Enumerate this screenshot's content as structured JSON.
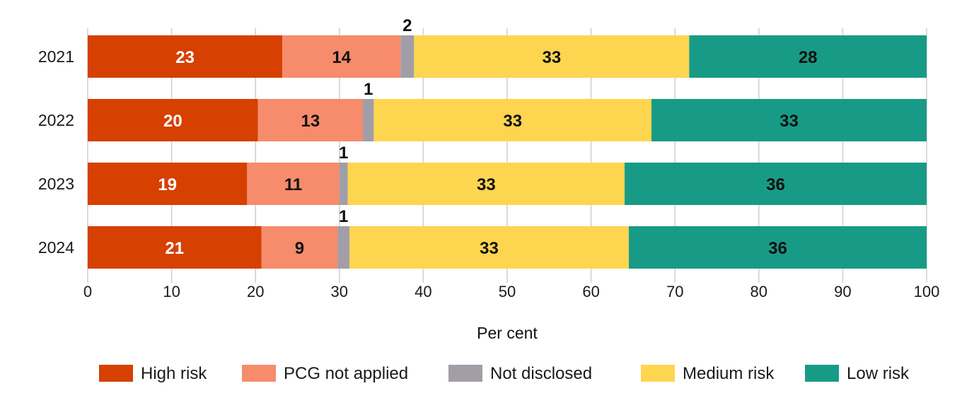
{
  "chart_data": {
    "type": "bar",
    "orientation": "horizontal",
    "stacked": true,
    "title": "",
    "xlabel": "Per cent",
    "ylabel": "",
    "xlim": [
      0,
      100
    ],
    "xticks": [
      "0",
      "10",
      "20",
      "30",
      "40",
      "50",
      "60",
      "70",
      "80",
      "90",
      "100"
    ],
    "grid": true,
    "legend_position": "bottom",
    "categories": [
      "2021",
      "2022",
      "2023",
      "2024"
    ],
    "series": [
      {
        "name": "High risk",
        "color": "#D64000",
        "label_color": "#ffffff",
        "values": [
          23.2,
          20.3,
          19.0,
          20.7
        ],
        "labels": [
          "23",
          "20",
          "19",
          "21"
        ],
        "label_outside": false
      },
      {
        "name": "PCG not applied",
        "color": "#F68C6C",
        "label_color": "#111111",
        "values": [
          14.1,
          12.5,
          11.0,
          9.1
        ],
        "labels": [
          "14",
          "13",
          "11",
          "9"
        ],
        "label_outside": false
      },
      {
        "name": "Not disclosed",
        "color": "#A19EA8",
        "label_color": "#111111",
        "values": [
          1.6,
          1.3,
          1.0,
          1.4
        ],
        "labels": [
          "2",
          "1",
          "1",
          "1"
        ],
        "label_outside": true
      },
      {
        "name": "Medium risk",
        "color": "#FDD54F",
        "label_color": "#111111",
        "values": [
          32.8,
          33.1,
          33.0,
          33.3
        ],
        "labels": [
          "33",
          "33",
          "33",
          "33"
        ],
        "label_outside": false
      },
      {
        "name": "Low risk",
        "color": "#189B86",
        "label_color": "#111111",
        "values": [
          28.3,
          32.8,
          36.0,
          35.5
        ],
        "labels": [
          "28",
          "33",
          "36",
          "36"
        ],
        "label_outside": false
      }
    ]
  }
}
